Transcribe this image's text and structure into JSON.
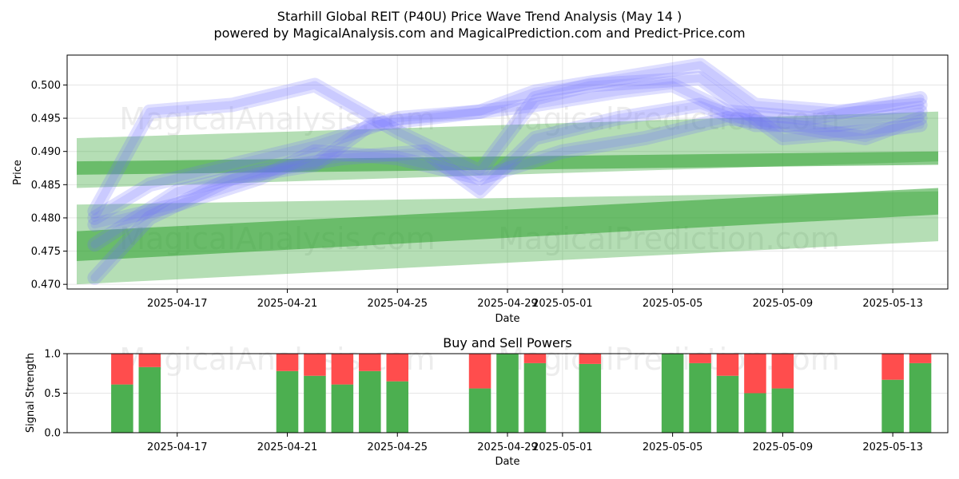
{
  "figure": {
    "title_line1": "Starhill Global REIT (P40U) Price Wave Trend Analysis (May 14 )",
    "title_line2": "powered by MagicalAnalysis.com and MagicalPrediction.com and Predict-Price.com",
    "watermarks": [
      "MagicalAnalysis.com",
      "MagicalPrediction.com"
    ]
  },
  "colors": {
    "wave_blue": "#6f6fff",
    "band_green": "#2ca02c",
    "buy_green": "#4caf50",
    "sell_red": "#ff4d4d",
    "grid": "#e6e6e6",
    "axis": "#000000"
  },
  "chart_data": [
    {
      "type": "line",
      "title": "",
      "xlabel": "Date",
      "ylabel": "Price",
      "x_ticks": [
        "2025-04-17",
        "2025-04-21",
        "2025-04-25",
        "2025-04-29",
        "2025-05-01",
        "2025-05-05",
        "2025-05-09",
        "2025-05-13"
      ],
      "y_ticks": [
        0.47,
        0.475,
        0.48,
        0.485,
        0.49,
        0.495,
        0.5
      ],
      "ylim": [
        0.4693,
        0.5045
      ],
      "xlim": [
        "2025-04-13",
        "2025-05-15"
      ],
      "grid": true,
      "series": [
        {
          "kind": "wave",
          "x": [
            "2025-04-14",
            "2025-04-16",
            "2025-04-19",
            "2025-04-22",
            "2025-04-25",
            "2025-04-28",
            "2025-04-30",
            "2025-05-03",
            "2025-05-06",
            "2025-05-08",
            "2025-05-11",
            "2025-05-14"
          ],
          "values": [
            0.48,
            0.485,
            0.488,
            0.491,
            0.495,
            0.496,
            0.499,
            0.501,
            0.503,
            0.497,
            0.496,
            0.497
          ]
        },
        {
          "kind": "wave",
          "x": [
            "2025-04-14",
            "2025-04-17",
            "2025-04-20",
            "2025-04-23",
            "2025-04-26",
            "2025-04-28",
            "2025-04-30",
            "2025-05-03",
            "2025-05-06",
            "2025-05-08",
            "2025-05-11",
            "2025-05-14"
          ],
          "values": [
            0.476,
            0.484,
            0.487,
            0.489,
            0.49,
            0.484,
            0.492,
            0.495,
            0.497,
            0.494,
            0.494,
            0.496
          ]
        },
        {
          "kind": "wave",
          "x": [
            "2025-04-14",
            "2025-04-16",
            "2025-04-19",
            "2025-04-22",
            "2025-04-24",
            "2025-04-28",
            "2025-04-30",
            "2025-05-03",
            "2025-05-05",
            "2025-05-07",
            "2025-05-10",
            "2025-05-14"
          ],
          "values": [
            0.471,
            0.48,
            0.486,
            0.488,
            0.494,
            0.496,
            0.497,
            0.499,
            0.5,
            0.496,
            0.495,
            0.498
          ]
        },
        {
          "kind": "wave",
          "x": [
            "2025-04-14",
            "2025-04-16",
            "2025-04-19",
            "2025-04-22",
            "2025-04-25",
            "2025-04-28",
            "2025-04-30",
            "2025-05-02",
            "2025-05-06",
            "2025-05-09",
            "2025-05-12",
            "2025-05-14"
          ],
          "values": [
            0.481,
            0.496,
            0.497,
            0.5,
            0.493,
            0.487,
            0.498,
            0.5,
            0.501,
            0.492,
            0.493,
            0.494
          ]
        },
        {
          "kind": "wave",
          "x": [
            "2025-04-14",
            "2025-04-17",
            "2025-04-20",
            "2025-04-22",
            "2025-04-25",
            "2025-04-28",
            "2025-05-01",
            "2025-05-04",
            "2025-05-07",
            "2025-05-09",
            "2025-05-12",
            "2025-05-14"
          ],
          "values": [
            0.479,
            0.482,
            0.486,
            0.49,
            0.489,
            0.486,
            0.49,
            0.492,
            0.495,
            0.494,
            0.492,
            0.495
          ]
        }
      ],
      "bands": [
        {
          "kind": "outer",
          "upper_start": 0.492,
          "upper_end": 0.496,
          "lower_start": 0.4845,
          "lower_end": 0.4885
        },
        {
          "kind": "outer",
          "upper_start": 0.482,
          "upper_end": 0.484,
          "lower_start": 0.47,
          "lower_end": 0.4765
        },
        {
          "kind": "inner",
          "upper_start": 0.4885,
          "upper_end": 0.49,
          "lower_start": 0.4865,
          "lower_end": 0.488
        },
        {
          "kind": "inner",
          "upper_start": 0.478,
          "upper_end": 0.4845,
          "lower_start": 0.4735,
          "lower_end": 0.4805
        }
      ]
    },
    {
      "type": "bar",
      "title": "Buy and Sell Powers",
      "xlabel": "Date",
      "ylabel": "Signal Strength",
      "x_ticks": [
        "2025-04-17",
        "2025-04-21",
        "2025-04-25",
        "2025-04-29",
        "2025-05-01",
        "2025-05-05",
        "2025-05-09",
        "2025-05-13"
      ],
      "y_ticks": [
        0.0,
        0.5,
        1.0
      ],
      "ylim": [
        0,
        1
      ],
      "xlim": [
        "2025-04-13",
        "2025-05-15"
      ],
      "stacked": true,
      "categories": [
        "2025-04-15",
        "2025-04-16",
        "2025-04-21",
        "2025-04-22",
        "2025-04-23",
        "2025-04-24",
        "2025-04-25",
        "2025-04-28",
        "2025-04-29",
        "2025-04-30",
        "2025-05-02",
        "2025-05-05",
        "2025-05-06",
        "2025-05-07",
        "2025-05-08",
        "2025-05-09",
        "2025-05-13",
        "2025-05-14"
      ],
      "series": [
        {
          "name": "Buy",
          "values": [
            0.61,
            0.83,
            0.78,
            0.72,
            0.61,
            0.78,
            0.65,
            0.56,
            1.0,
            0.88,
            0.87,
            1.0,
            0.88,
            0.72,
            0.5,
            0.56,
            0.67,
            0.88
          ]
        },
        {
          "name": "Sell",
          "values": [
            0.39,
            0.17,
            0.22,
            0.28,
            0.39,
            0.22,
            0.35,
            0.44,
            0.0,
            0.12,
            0.13,
            0.0,
            0.12,
            0.28,
            0.5,
            0.44,
            0.33,
            0.12
          ]
        }
      ]
    }
  ]
}
